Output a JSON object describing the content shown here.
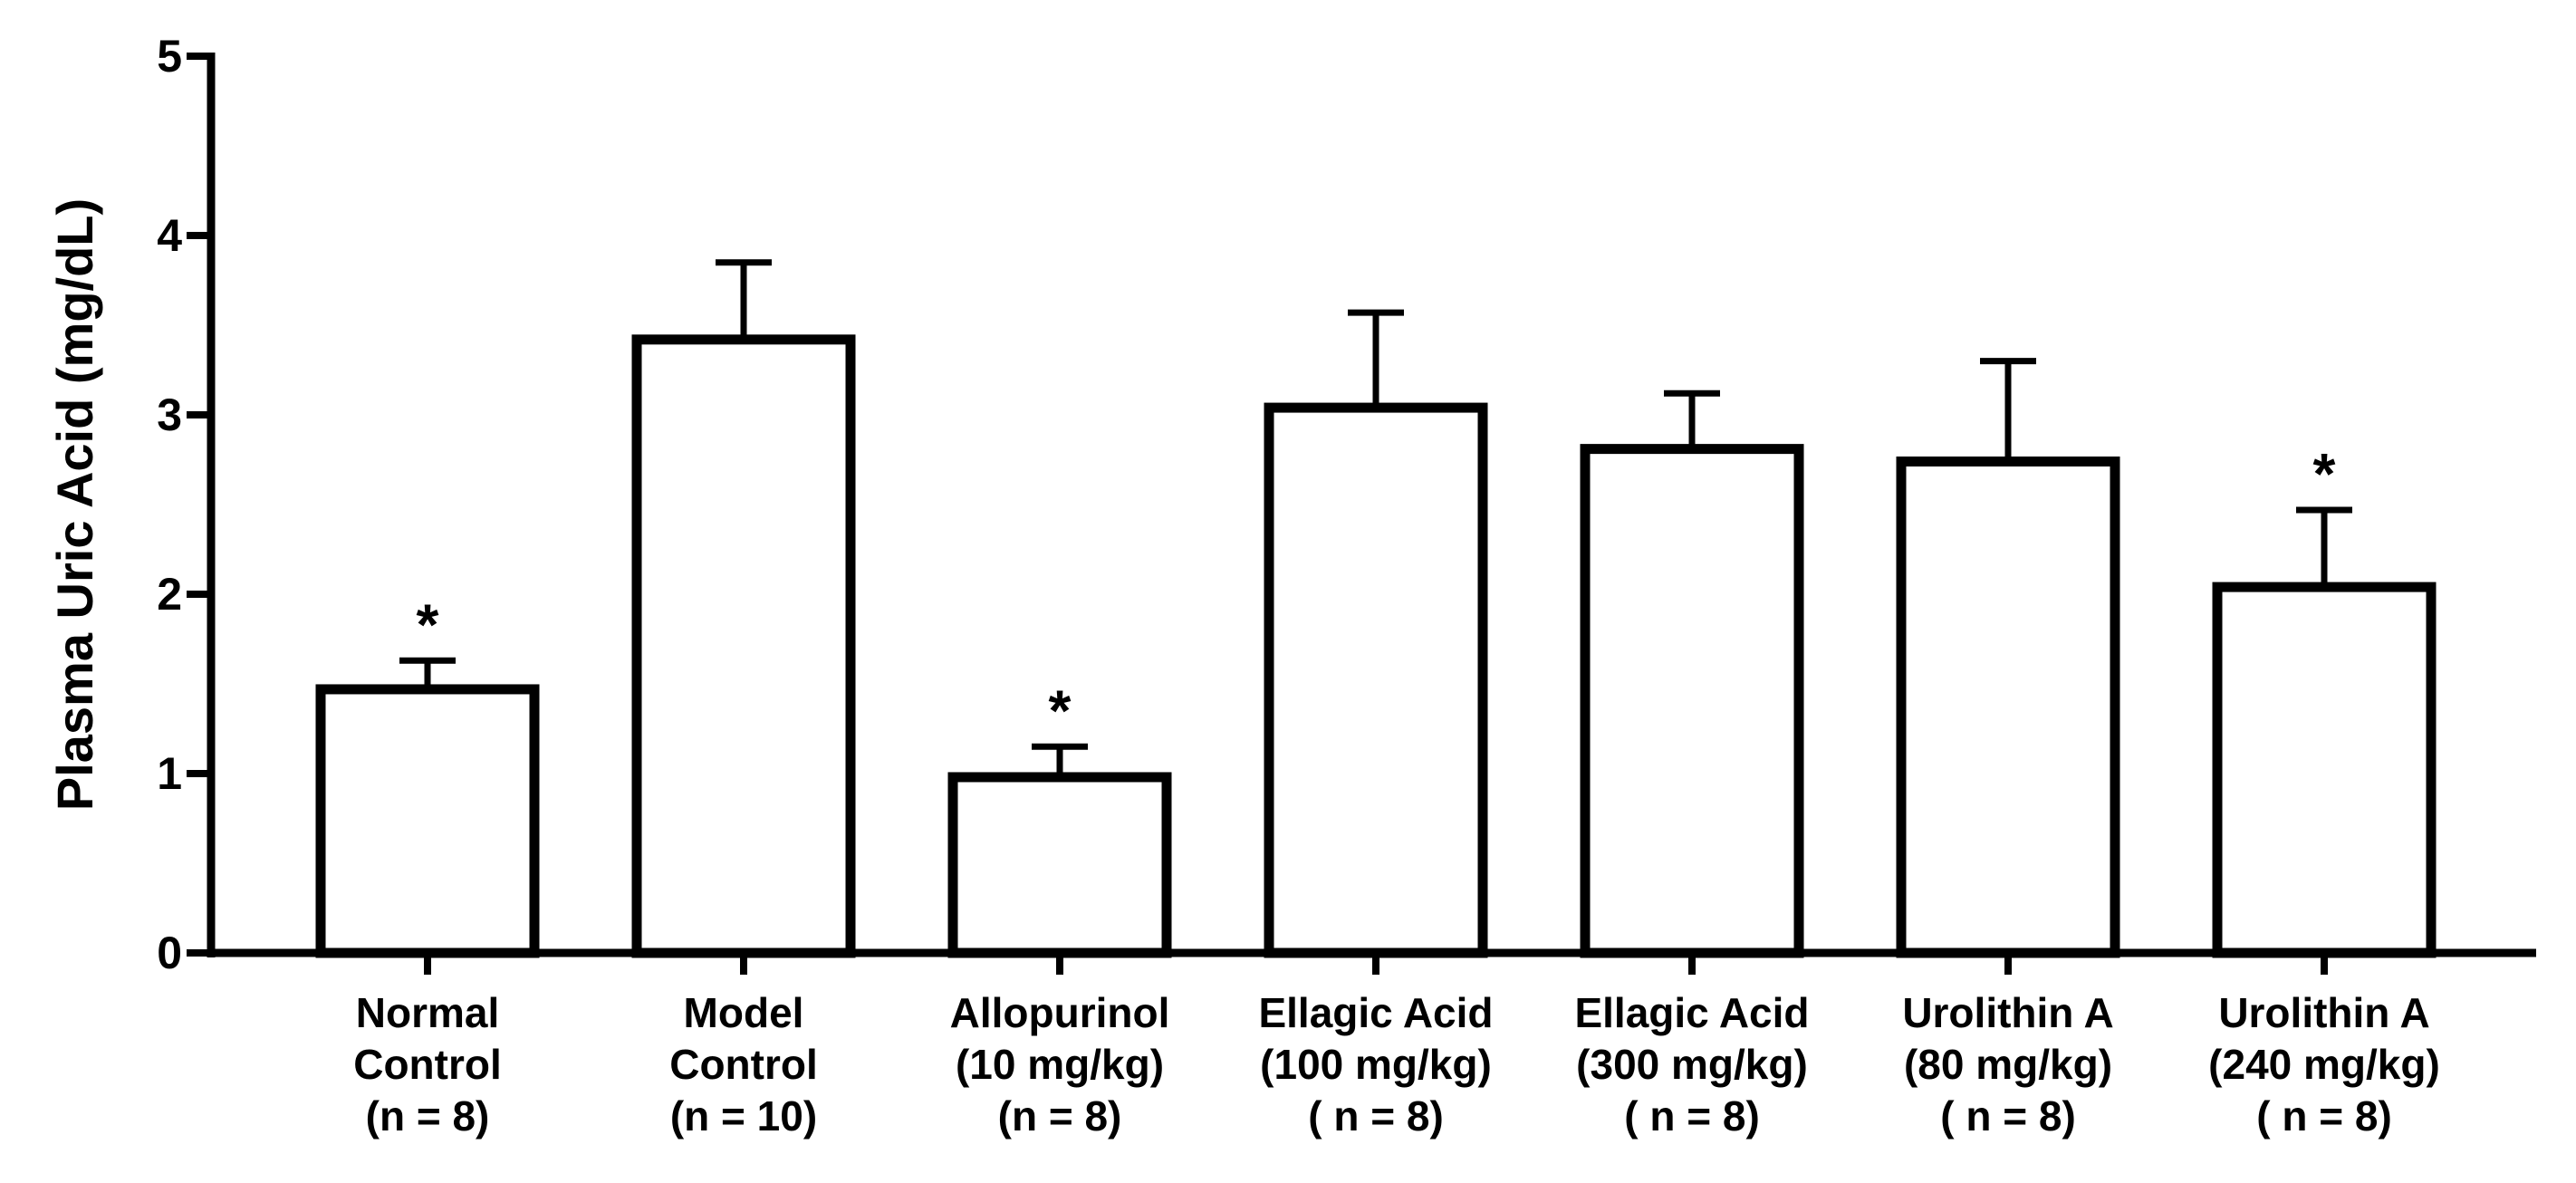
{
  "chart_data": {
    "type": "bar",
    "title": "",
    "xlabel": "",
    "ylabel": "Plasma Uric Acid (mg/dL)",
    "ylim": [
      0,
      5
    ],
    "yticks": [
      "0",
      "1",
      "2",
      "3",
      "4",
      "5"
    ],
    "categories": [
      [
        "Normal",
        "Control",
        "(n = 8)"
      ],
      [
        "Model",
        "Control",
        "(n = 10)"
      ],
      [
        "Allopurinol",
        "(10 mg/kg)",
        "(n = 8)"
      ],
      [
        "Ellagic Acid",
        "(100 mg/kg)",
        "( n = 8)"
      ],
      [
        "Ellagic Acid",
        "(300 mg/kg)",
        "( n = 8)"
      ],
      [
        "Urolithin A",
        "(80 mg/kg)",
        "( n = 8)"
      ],
      [
        "Urolithin A",
        "(240 mg/kg)",
        "( n = 8)"
      ]
    ],
    "values": [
      1.47,
      3.42,
      0.98,
      3.04,
      2.81,
      2.74,
      2.04
    ],
    "error_upper": [
      0.16,
      0.43,
      0.17,
      0.53,
      0.31,
      0.56,
      0.43
    ],
    "significance": [
      "*",
      "",
      "*",
      "",
      "",
      "",
      "*"
    ],
    "colors": {
      "bar_fill": "#ffffff",
      "bar_stroke": "#000000",
      "axis": "#000000"
    }
  }
}
